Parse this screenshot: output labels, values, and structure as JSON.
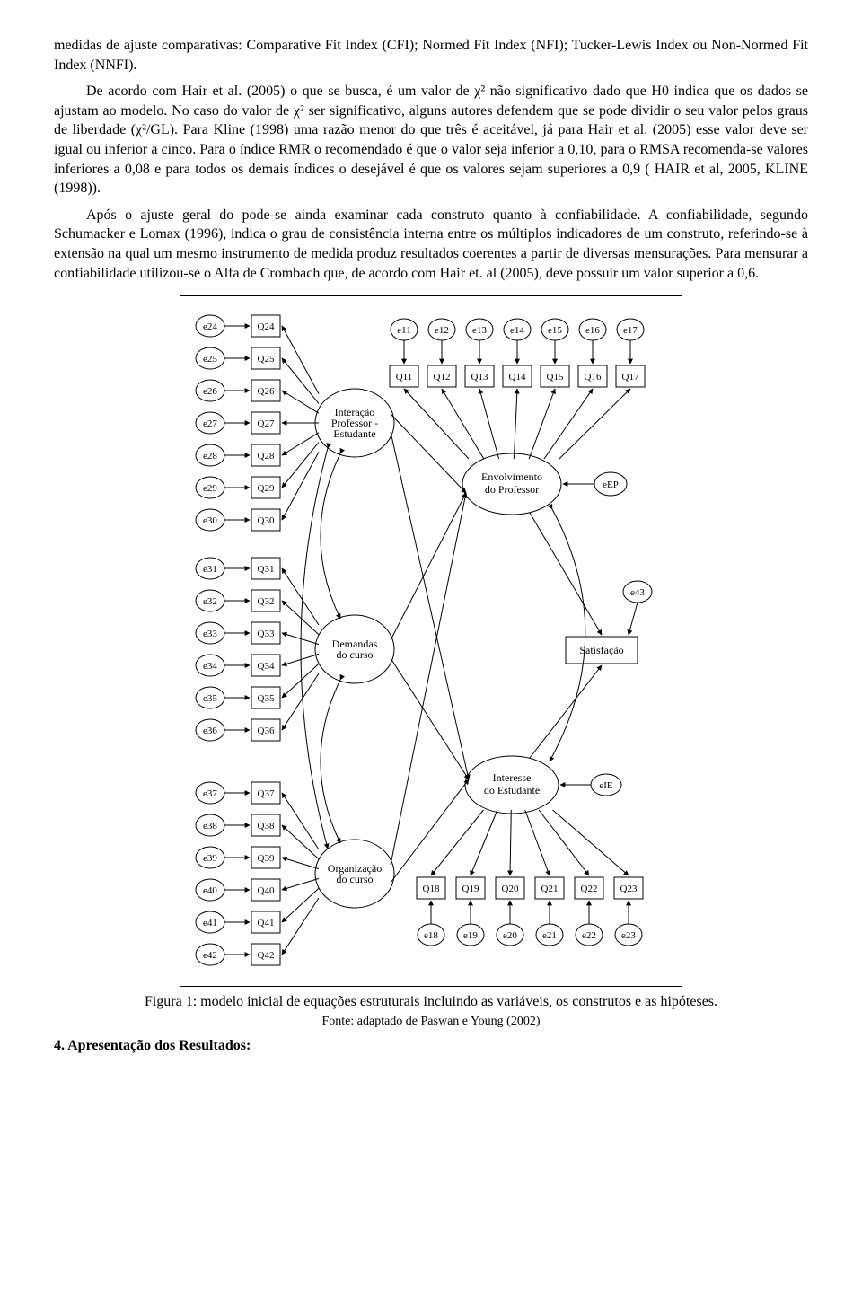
{
  "para1": "medidas de ajuste comparativas: Comparative Fit Index (CFI); Normed Fit Index (NFI); Tucker-Lewis Index ou Non-Normed Fit Index (NNFI).",
  "para2": "De acordo com Hair et al. (2005) o que se busca, é um valor de χ² não significativo dado que H0 indica que os dados se ajustam ao modelo. No caso do valor de χ² ser significativo, alguns autores defendem que se pode dividir o seu valor pelos graus de liberdade (χ²/GL). Para Kline (1998) uma razão menor do que três é aceitável, já para Hair et al. (2005) esse valor deve ser igual ou inferior a cinco. Para o índice RMR o recomendado é que o valor seja inferior a 0,10, para o RMSA recomenda-se valores inferiores a 0,08 e para todos os demais índices o desejável é que os valores sejam superiores a 0,9 ( HAIR et al, 2005, KLINE (1998)).",
  "para3": "Após o ajuste geral do pode-se ainda examinar cada construto quanto à confiabilidade. A confiabilidade, segundo Schumacker e Lomax (1996), indica o grau de consistência interna entre os múltiplos indicadores de um construto, referindo-se à extensão na qual um mesmo instrumento de medida produz resultados coerentes a partir de diversas mensurações. Para mensurar a confiabilidade utilizou-se o Alfa de Crombach que, de acordo com Hair et. al (2005), deve possuir um valor superior a 0,6.",
  "caption": "Figura 1: modelo inicial de equações estruturais incluindo as variáveis, os construtos e as hipóteses.",
  "source": "Fonte: adaptado de Paswan e Young (2002)",
  "section": "4. Apresentação dos Resultados:",
  "diagram": {
    "nodeStroke": "#000000",
    "nodeFill": "#ffffff",
    "edgeColor": "#000000",
    "bgColor": "#ffffff",
    "borderColor": "#000000",
    "fontSize": 12,
    "leftErrors": [
      "e24",
      "e25",
      "e26",
      "e27",
      "e28",
      "e29",
      "e30",
      "e31",
      "e32",
      "e33",
      "e34",
      "e35",
      "e36",
      "e37",
      "e38",
      "e39",
      "e40",
      "e41",
      "e42"
    ],
    "leftIndicators": [
      "Q24",
      "Q25",
      "Q26",
      "Q27",
      "Q28",
      "Q29",
      "Q30",
      "Q31",
      "Q32",
      "Q33",
      "Q34",
      "Q35",
      "Q36",
      "Q37",
      "Q38",
      "Q39",
      "Q40",
      "Q41",
      "Q42"
    ],
    "topErrors": [
      "e11",
      "e12",
      "e13",
      "e14",
      "e15",
      "e16",
      "e17"
    ],
    "topIndicators": [
      "Q11",
      "Q12",
      "Q13",
      "Q14",
      "Q15",
      "Q16",
      "Q17"
    ],
    "botIndicators": [
      "Q18",
      "Q19",
      "Q20",
      "Q21",
      "Q22",
      "Q23"
    ],
    "botErrors": [
      "e18",
      "e19",
      "e20",
      "e21",
      "e22",
      "e23"
    ],
    "latents": {
      "interacao": [
        "Interação",
        "Professor -",
        "Estudante"
      ],
      "demandas": [
        "Demandas",
        "do curso"
      ],
      "organizacao": [
        "Organização",
        "do curso"
      ],
      "envolvimento": [
        "Envolvimento",
        "do Professor"
      ],
      "interesse": [
        "Interesse",
        "do Estudante"
      ],
      "satisfacao": "Satisfação"
    },
    "rightErrors": {
      "eEP": "eEP",
      "eIE": "eIE",
      "e43": "e43"
    }
  }
}
